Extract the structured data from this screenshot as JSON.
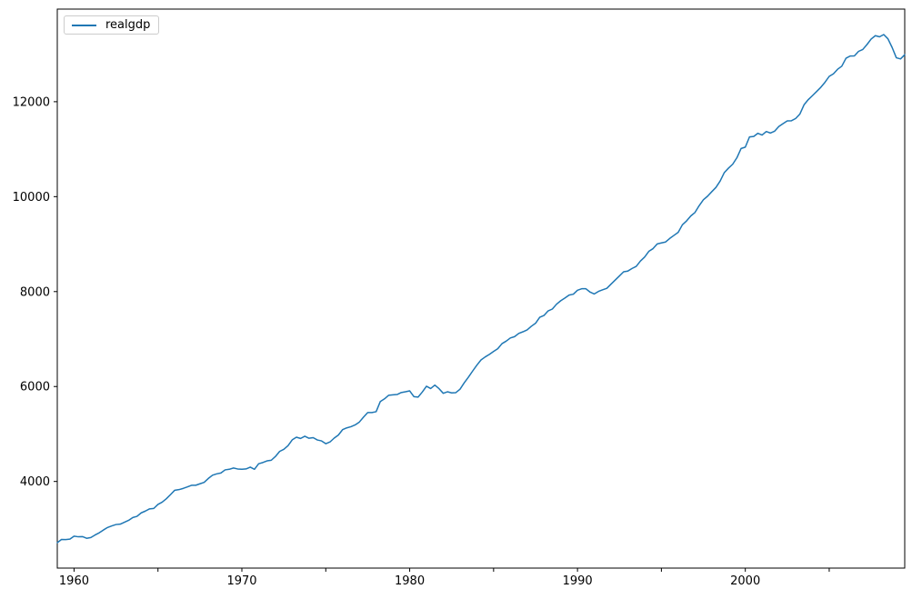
{
  "legend": {
    "label": "realgdp",
    "position": "upper left"
  },
  "colors": {
    "line": "#1f77b4",
    "spine": "#000000",
    "tick": "#000000",
    "tick_label": "#000000",
    "legend_border": "#cccccc",
    "background": "#ffffff"
  },
  "chart_data": {
    "type": "line",
    "title": "",
    "xlabel": "",
    "ylabel": "",
    "grid": false,
    "legend_position": "upper left",
    "x_unit": "year (quarterly observations)",
    "x_start": 1959.0,
    "x_step": 0.25,
    "xlim": [
      1959.0,
      2009.5
    ],
    "ylim": [
      2175,
      13951
    ],
    "xticks_major": [
      1960,
      1970,
      1980,
      1990,
      2000
    ],
    "xticks_minor": [
      1965,
      1975,
      1985,
      1995,
      2005
    ],
    "yticks": [
      4000,
      6000,
      8000,
      10000,
      12000
    ],
    "series": [
      {
        "name": "realgdp",
        "color": "#1f77b4",
        "values": [
          2710.349,
          2778.801,
          2775.488,
          2785.204,
          2847.699,
          2834.39,
          2839.022,
          2802.616,
          2819.264,
          2872.005,
          2918.419,
          2977.83,
          3031.241,
          3064.709,
          3093.047,
          3100.563,
          3141.087,
          3180.447,
          3240.332,
          3264.967,
          3338.246,
          3376.587,
          3422.469,
          3431.957,
          3516.251,
          3563.96,
          3636.285,
          3724.014,
          3815.423,
          3828.124,
          3853.301,
          3884.52,
          3918.74,
          3919.556,
          3950.826,
          3980.97,
          4063.013,
          4131.998,
          4160.267,
          4178.293,
          4244.1,
          4256.46,
          4283.378,
          4263.261,
          4256.573,
          4264.289,
          4302.259,
          4256.637,
          4374.016,
          4398.829,
          4433.943,
          4446.264,
          4525.769,
          4633.101,
          4677.503,
          4754.546,
          4876.166,
          4932.571,
          4906.252,
          4953.05,
          4909.617,
          4922.188,
          4873.52,
          4854.34,
          4795.295,
          4831.942,
          4913.328,
          4977.511,
          5090.663,
          5128.947,
          5154.072,
          5191.499,
          5251.762,
          5356.131,
          5451.921,
          5450.793,
          5469.405,
          5684.569,
          5740.3,
          5816.222,
          5825.949,
          5831.418,
          5873.335,
          5889.495,
          5908.467,
          5787.373,
          5776.617,
          5883.46,
          6005.717,
          5957.795,
          6030.184,
          5955.062,
          5857.333,
          5889.074,
          5866.37,
          5871.001,
          5944.02,
          6077.619,
          6197.468,
          6325.574,
          6448.264,
          6559.594,
          6623.343,
          6677.264,
          6740.275,
          6797.344,
          6903.523,
          6955.918,
          7022.757,
          7050.969,
          7118.95,
          7153.359,
          7193.019,
          7269.51,
          7332.558,
          7458.022,
          7496.6,
          7592.881,
          7632.082,
          7733.991,
          7806.603,
          7865.016,
          7927.393,
          7944.697,
          8027.693,
          8059.598,
          8059.476,
          7988.864,
          7950.164,
          8003.822,
          8037.538,
          8069.046,
          8157.616,
          8244.294,
          8329.254,
          8417.016,
          8432.485,
          8486.435,
          8531.108,
          8643.769,
          8727.919,
          8847.303,
          8904.289,
          9003.18,
          9025.267,
          9044.668,
          9120.684,
          9184.275,
          9247.188,
          9407.052,
          9488.879,
          9592.458,
          9666.235,
          9809.551,
          9932.672,
          10008.874,
          10103.425,
          10194.277,
          10328.787,
          10507.575,
          10601.179,
          10684.049,
          10819.914,
          11014.254,
          11043.044,
          11258.454,
          11267.867,
          11334.544,
          11297.171,
          11371.251,
          11340.075,
          11380.128,
          11477.868,
          11538.77,
          11596.43,
          11598.824,
          11645.819,
          11738.706,
          11935.461,
          12042.817,
          12127.623,
          12213.818,
          12303.533,
          12410.282,
          12534.113,
          12587.535,
          12683.153,
          12748.699,
          12915.938,
          12962.462,
          12965.916,
          13060.679,
          13099.901,
          13203.977,
          13321.109,
          13391.249,
          13366.865,
          13415.266,
          13324.6,
          13141.92,
          12925.41,
          12901.504,
          12990.341
        ]
      }
    ]
  }
}
